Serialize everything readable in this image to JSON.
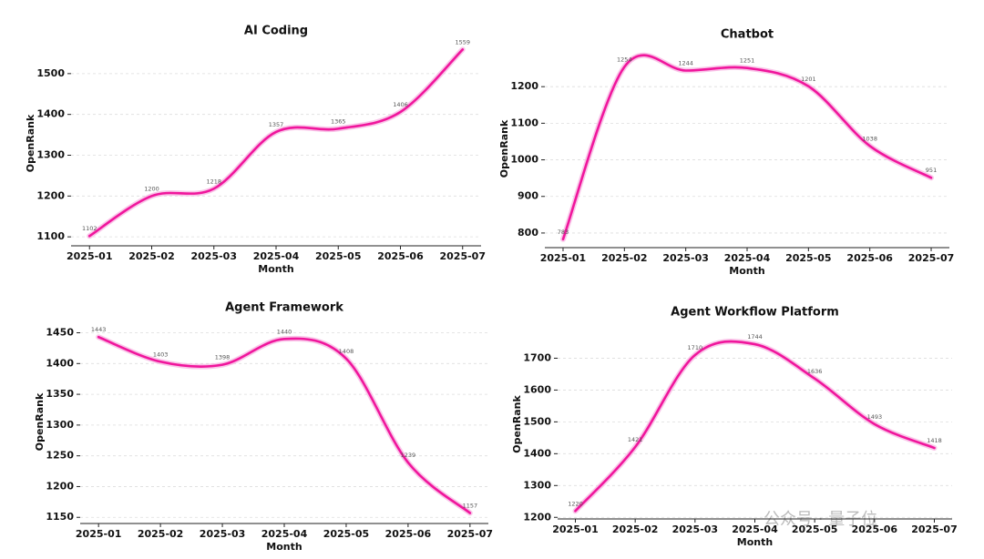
{
  "chart_data": [
    {
      "type": "line",
      "title": "AI Coding",
      "x_label": "Month",
      "y_label": "OpenRank",
      "categories": [
        "2025-01",
        "2025-02",
        "2025-03",
        "2025-04",
        "2025-05",
        "2025-06",
        "2025-07"
      ],
      "series": [
        {
          "name": "AI Coding",
          "color": "#f0169c",
          "values": [
            1102,
            1200,
            1218,
            1357,
            1365,
            1406,
            1559
          ]
        }
      ],
      "ylim": [
        1078,
        1580
      ],
      "yticks": [
        1100,
        1200,
        1300,
        1400,
        1500
      ],
      "grid": true
    },
    {
      "type": "line",
      "title": "Chatbot",
      "x_label": "Month",
      "y_label": "OpenRank",
      "categories": [
        "2025-01",
        "2025-02",
        "2025-03",
        "2025-04",
        "2025-05",
        "2025-06",
        "2025-07"
      ],
      "series": [
        {
          "name": "Chatbot",
          "color": "#f0169c",
          "values": [
            783,
            1254,
            1244,
            1251,
            1201,
            1038,
            951
          ]
        }
      ],
      "ylim": [
        760,
        1300
      ],
      "yticks": [
        800,
        900,
        1000,
        1100,
        1200
      ],
      "grid": true
    },
    {
      "type": "line",
      "title": "Agent Framework",
      "x_label": "Month",
      "y_label": "OpenRank",
      "categories": [
        "2025-01",
        "2025-02",
        "2025-03",
        "2025-04",
        "2025-05",
        "2025-06",
        "2025-07"
      ],
      "series": [
        {
          "name": "Agent Framework",
          "color": "#f0169c",
          "values": [
            1443,
            1403,
            1398,
            1440,
            1408,
            1239,
            1157
          ]
        }
      ],
      "ylim": [
        1140,
        1470
      ],
      "yticks": [
        1150,
        1200,
        1250,
        1300,
        1350,
        1400,
        1450
      ],
      "grid": true
    },
    {
      "type": "line",
      "title": "Agent Workflow Platform",
      "x_label": "Month",
      "y_label": "OpenRank",
      "categories": [
        "2025-01",
        "2025-02",
        "2025-03",
        "2025-04",
        "2025-05",
        "2025-06",
        "2025-07"
      ],
      "series": [
        {
          "name": "Agent Workflow Platform",
          "color": "#f0169c",
          "values": [
            1220,
            1421,
            1710,
            1744,
            1636,
            1493,
            1418
          ]
        }
      ],
      "ylim": [
        1195,
        1790
      ],
      "yticks": [
        1200,
        1300,
        1400,
        1500,
        1600,
        1700
      ],
      "grid": true
    }
  ],
  "watermark": "公众号 · 量子位"
}
